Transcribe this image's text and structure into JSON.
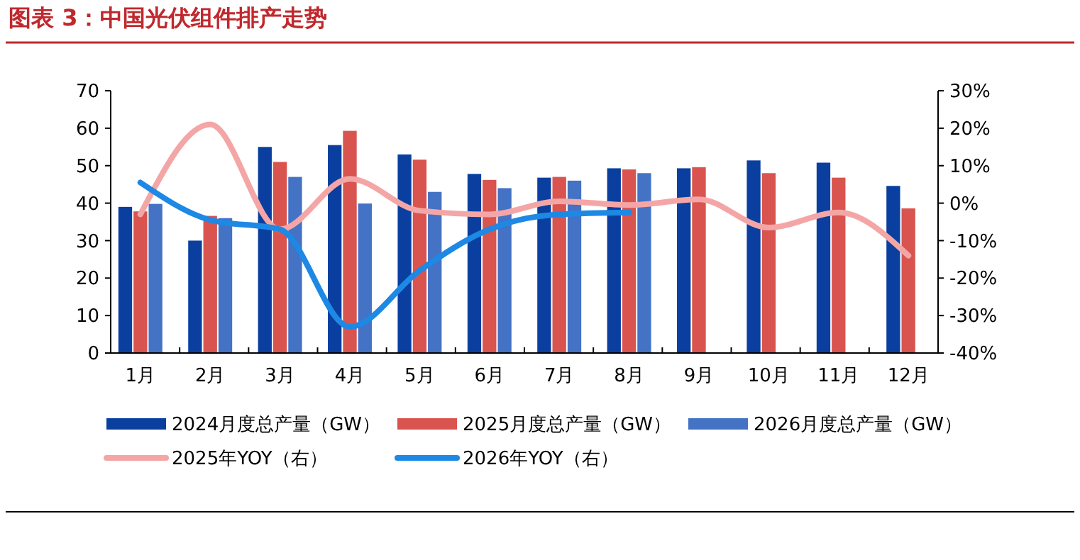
{
  "chart_data": {
    "type": "bar",
    "title": "图表 3：中国光伏组件排产走势",
    "categories": [
      "1月",
      "2月",
      "3月",
      "4月",
      "5月",
      "6月",
      "7月",
      "8月",
      "9月",
      "10月",
      "11月",
      "12月"
    ],
    "series": [
      {
        "name": "2024月度总产量（GW）",
        "color": "#0a3fa0",
        "values": [
          39,
          30,
          55,
          55.5,
          53,
          47.8,
          46.8,
          49.3,
          49.3,
          51.4,
          50.8,
          44.6
        ]
      },
      {
        "name": "2025月度总产量（GW）",
        "color": "#d9534f",
        "values": [
          37.8,
          36.6,
          51,
          59.3,
          51.6,
          46.2,
          47,
          49,
          49.6,
          48,
          46.8,
          38.6
        ]
      },
      {
        "name": "2026月度总产量（GW）",
        "color": "#4472c4",
        "values": [
          39.8,
          36,
          47,
          39.9,
          43,
          44,
          46,
          48,
          null,
          null,
          null,
          null
        ]
      },
      {
        "name": "2025年YOY（右）",
        "type": "line",
        "axis": "y2",
        "color": "#f4a6a6",
        "values": [
          -3,
          21,
          -7,
          6.5,
          -2,
          -3,
          0.5,
          -0.5,
          1,
          -6.5,
          -2.5,
          -14
        ]
      },
      {
        "name": "2026年YOY（右）",
        "type": "line",
        "axis": "y2",
        "color": "#1e88e5",
        "values": [
          5.5,
          -4.5,
          -7,
          -33,
          -18,
          -7,
          -3,
          -2.5,
          null,
          null,
          null,
          null
        ]
      }
    ],
    "ylim": [
      0,
      70
    ],
    "yticks": [
      0,
      10,
      20,
      30,
      40,
      50,
      60,
      70
    ],
    "y2lim": [
      -40,
      30
    ],
    "y2ticks": [
      {
        "value": -40,
        "label": "-40%"
      },
      {
        "value": -30,
        "label": "-30%"
      },
      {
        "value": -20,
        "label": "-20%"
      },
      {
        "value": -10,
        "label": "-10%"
      },
      {
        "value": 0,
        "label": "0%"
      },
      {
        "value": 10,
        "label": "10%"
      },
      {
        "value": 20,
        "label": "20%"
      },
      {
        "value": 30,
        "label": "30%"
      }
    ],
    "grid": false,
    "legend": "bottom",
    "marker": "none",
    "line_style": "solid"
  }
}
